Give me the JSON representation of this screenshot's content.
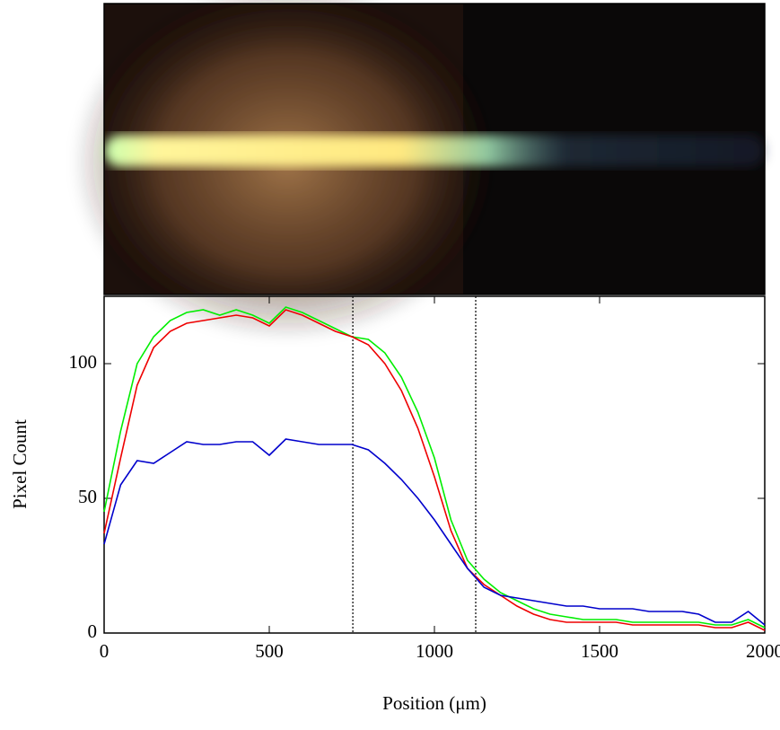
{
  "chart_data": {
    "type": "line",
    "x_label": "Position (μm)",
    "y_label": "Pixel Count",
    "x": [
      0,
      50,
      100,
      150,
      200,
      250,
      300,
      350,
      400,
      450,
      500,
      550,
      600,
      650,
      700,
      750,
      800,
      850,
      900,
      950,
      1000,
      1050,
      1100,
      1150,
      1200,
      1250,
      1300,
      1350,
      1400,
      1450,
      1500,
      1550,
      1600,
      1650,
      1700,
      1750,
      1800,
      1850,
      1900,
      1950,
      2000
    ],
    "series": [
      {
        "name": "Green",
        "color": "#00ee00",
        "values": [
          45,
          75,
          100,
          110,
          116,
          119,
          120,
          118,
          120,
          118,
          115,
          121,
          119,
          116,
          113,
          110,
          109,
          104,
          95,
          82,
          65,
          42,
          27,
          20,
          15,
          12,
          9,
          7,
          6,
          5,
          5,
          5,
          4,
          4,
          4,
          4,
          4,
          3,
          3,
          5,
          2
        ]
      },
      {
        "name": "Red",
        "color": "#ee0000",
        "values": [
          37,
          65,
          92,
          106,
          112,
          115,
          116,
          117,
          118,
          117,
          114,
          120,
          118,
          115,
          112,
          110,
          107,
          100,
          90,
          76,
          58,
          38,
          24,
          18,
          14,
          10,
          7,
          5,
          4,
          4,
          4,
          4,
          3,
          3,
          3,
          3,
          3,
          2,
          2,
          4,
          1
        ]
      },
      {
        "name": "Blue",
        "color": "#0000cc",
        "values": [
          33,
          55,
          64,
          63,
          67,
          71,
          70,
          70,
          71,
          71,
          66,
          72,
          71,
          70,
          70,
          70,
          68,
          63,
          57,
          50,
          42,
          33,
          24,
          17,
          14,
          13,
          12,
          11,
          10,
          10,
          9,
          9,
          9,
          8,
          8,
          8,
          7,
          4,
          4,
          8,
          3
        ]
      }
    ],
    "vlines": [
      753,
      1125
    ],
    "xlim": [
      0,
      2000
    ],
    "ylim": [
      0,
      125
    ],
    "xticks": [
      0,
      500,
      1000,
      1500,
      2000
    ],
    "yticks": [
      0,
      50,
      100
    ]
  }
}
